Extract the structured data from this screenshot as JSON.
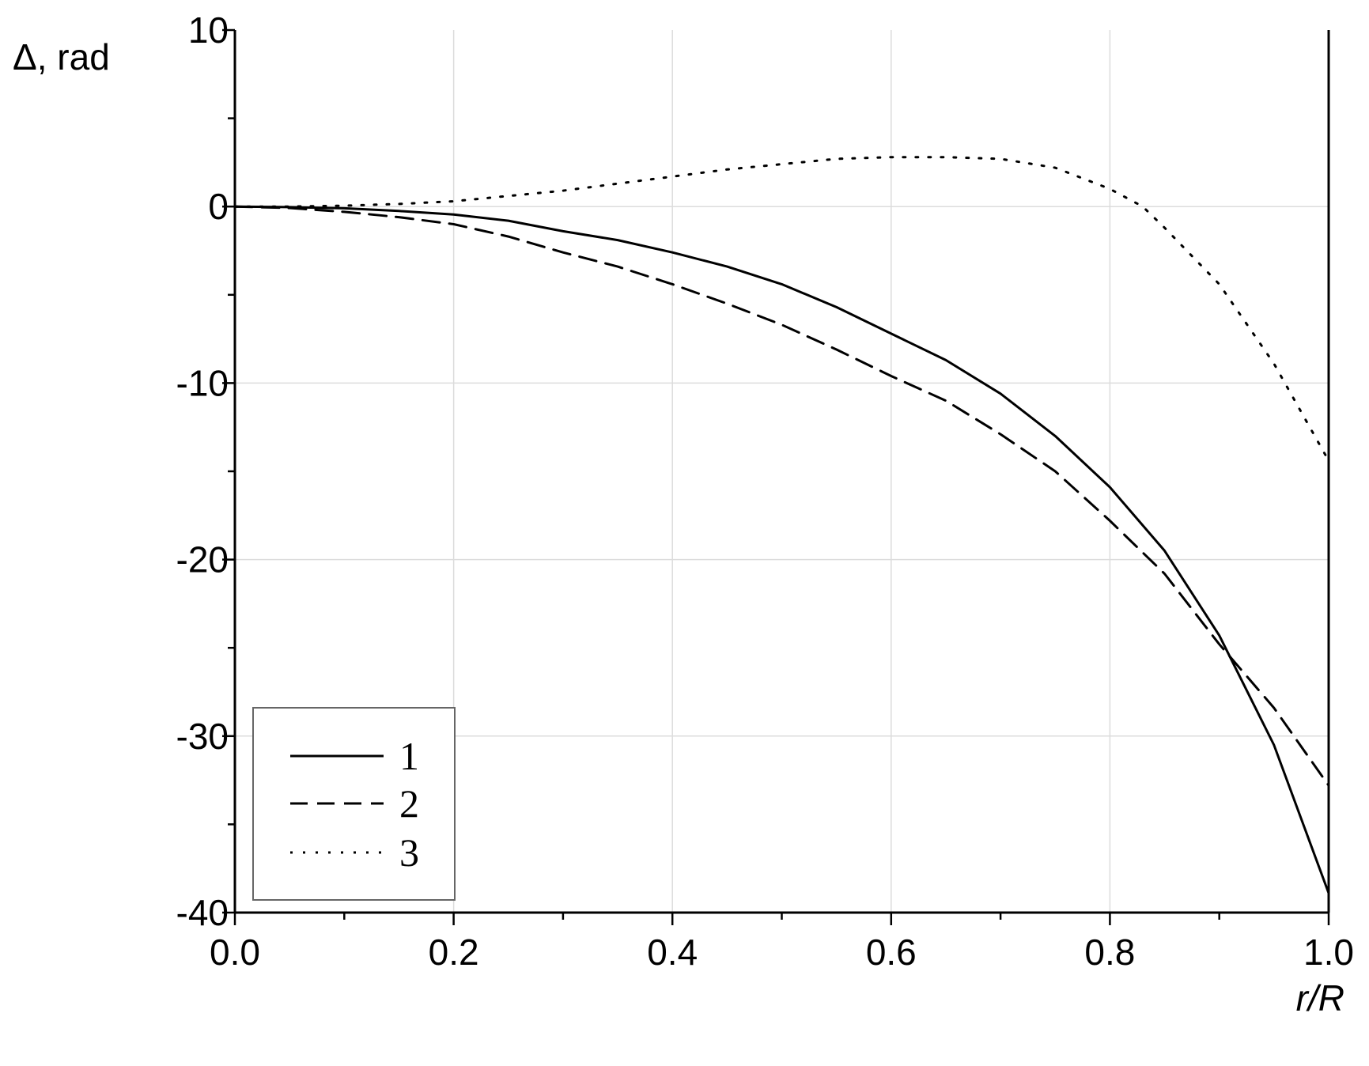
{
  "chart_data": {
    "type": "line",
    "xlabel": "r/R",
    "ylabel": "Δ, rad",
    "xlim": [
      0.0,
      1.0
    ],
    "ylim": [
      -40,
      10
    ],
    "x_ticks": [
      "0.0",
      "0.2",
      "0.4",
      "0.6",
      "0.8",
      "1.0"
    ],
    "y_ticks": [
      "10",
      "0",
      "-10",
      "-20",
      "-30",
      "-40"
    ],
    "grid": true,
    "legend_position": "bottom-left",
    "series": [
      {
        "name": "1",
        "style": "solid",
        "color": "#000000",
        "x": [
          0.0,
          0.05,
          0.1,
          0.15,
          0.2,
          0.25,
          0.3,
          0.35,
          0.4,
          0.45,
          0.5,
          0.55,
          0.6,
          0.65,
          0.7,
          0.75,
          0.8,
          0.85,
          0.9,
          0.95,
          1.0
        ],
        "y": [
          0.0,
          -0.03,
          -0.1,
          -0.25,
          -0.45,
          -0.8,
          -1.4,
          -1.9,
          -2.6,
          -3.4,
          -4.4,
          -5.7,
          -7.2,
          -8.7,
          -10.6,
          -13.0,
          -15.9,
          -19.5,
          -24.3,
          -30.5,
          -38.9
        ]
      },
      {
        "name": "2",
        "style": "dashed",
        "color": "#000000",
        "x": [
          0.0,
          0.05,
          0.1,
          0.15,
          0.2,
          0.25,
          0.3,
          0.35,
          0.4,
          0.45,
          0.5,
          0.55,
          0.6,
          0.65,
          0.7,
          0.75,
          0.8,
          0.85,
          0.9,
          0.95,
          1.0
        ],
        "y": [
          0.0,
          -0.08,
          -0.3,
          -0.6,
          -1.0,
          -1.7,
          -2.6,
          -3.4,
          -4.4,
          -5.5,
          -6.7,
          -8.1,
          -9.6,
          -11.0,
          -12.9,
          -15.0,
          -17.8,
          -20.8,
          -24.8,
          -28.4,
          -32.8
        ]
      },
      {
        "name": "3",
        "style": "dotted",
        "color": "#000000",
        "x": [
          0.0,
          0.05,
          0.1,
          0.15,
          0.2,
          0.25,
          0.3,
          0.35,
          0.4,
          0.45,
          0.5,
          0.55,
          0.6,
          0.65,
          0.7,
          0.75,
          0.8,
          0.83,
          0.85,
          0.9,
          0.95,
          1.0
        ],
        "y": [
          0.0,
          0.0,
          0.05,
          0.15,
          0.3,
          0.6,
          0.9,
          1.3,
          1.7,
          2.1,
          2.4,
          2.7,
          2.8,
          2.8,
          2.7,
          2.2,
          1.0,
          0.0,
          -1.2,
          -4.4,
          -8.9,
          -14.4
        ]
      }
    ]
  }
}
